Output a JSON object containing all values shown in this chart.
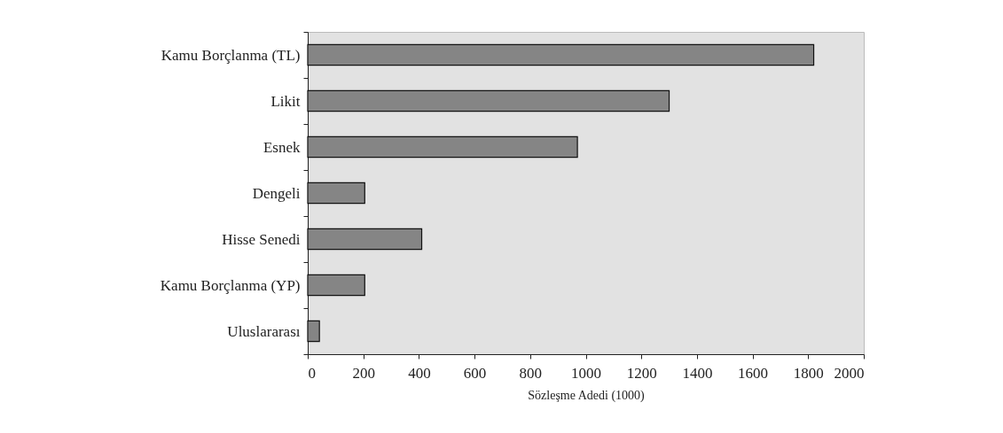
{
  "chart_data": {
    "type": "bar",
    "orientation": "horizontal",
    "xlabel": "Sözleşme Adedi (1000)",
    "categories": [
      "Kamu Borçlanma (TL)",
      "Likit",
      "Esnek",
      "Dengeli",
      "Hisse Senedi",
      "Kamu Borçlanma (YP)",
      "Uluslararası"
    ],
    "values": [
      1820,
      1300,
      970,
      205,
      410,
      205,
      42
    ],
    "color": "#858585",
    "xlim": [
      0,
      2000
    ],
    "xticks": [
      0,
      200,
      400,
      600,
      800,
      {
        "value": 1000,
        "label": "1000"
      },
      {
        "value": 1200,
        "label": "1200"
      },
      {
        "value": 1400,
        "label": "1400"
      },
      {
        "value": 1600,
        "label": "1600"
      },
      {
        "value": 1800,
        "label": "1800"
      },
      {
        "value": 2000,
        "label": "2000"
      }
    ],
    "grid": false
  }
}
